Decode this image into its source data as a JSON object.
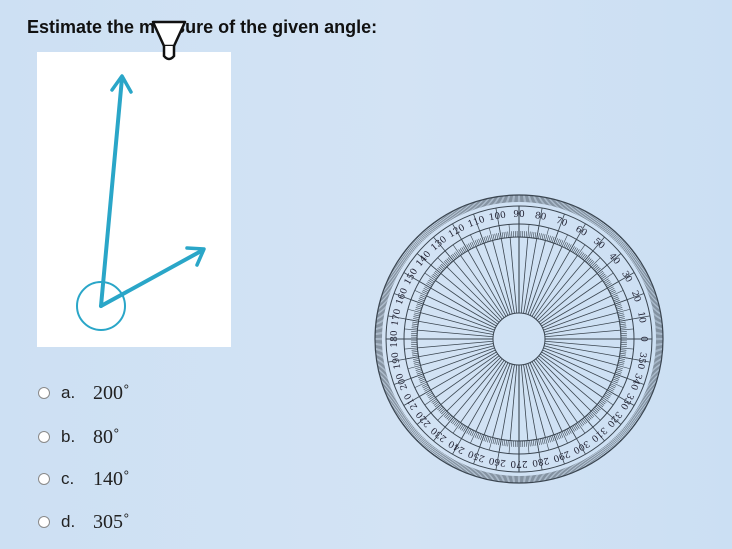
{
  "question": {
    "title": "Estimate the measure of the given angle:"
  },
  "figure": {
    "ray_color": "#2aa6c8",
    "vertex_icon": "vertex-circle"
  },
  "options": [
    {
      "letter": "a.",
      "value": "200˚"
    },
    {
      "letter": "b.",
      "value": "80˚"
    },
    {
      "letter": "c.",
      "value": "140˚"
    },
    {
      "letter": "d.",
      "value": "305˚"
    }
  ],
  "protractor": {
    "labels": [
      "0",
      "10",
      "20",
      "30",
      "40",
      "50",
      "60",
      "70",
      "80",
      "90",
      "100",
      "110",
      "120",
      "130",
      "140",
      "150",
      "160",
      "170",
      "180",
      "190",
      "200",
      "210",
      "220",
      "230",
      "240",
      "250",
      "260",
      "270",
      "280",
      "290",
      "300",
      "310",
      "320",
      "330",
      "340",
      "350"
    ],
    "line_color": "#3a4550"
  },
  "cursor": {
    "icon": "text-cursor-icon"
  }
}
